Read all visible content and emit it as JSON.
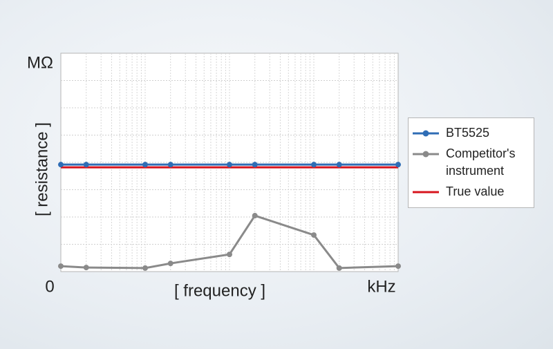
{
  "chart_data": {
    "type": "line",
    "y_corner_label": "MΩ",
    "x_origin_label": "0",
    "x_corner_label": "kHz",
    "xlabel": "[ frequency ]",
    "ylabel": "[ resistance ]",
    "x": [
      1,
      2,
      10,
      20,
      100,
      200,
      1000,
      2000,
      10000
    ],
    "xlim": [
      1,
      10000
    ],
    "xscale": "log",
    "xticks": [
      2,
      3,
      4,
      5,
      6,
      7,
      8,
      9,
      10,
      20,
      30,
      40,
      50,
      60,
      70,
      80,
      90,
      100,
      200,
      300,
      400,
      500,
      600,
      700,
      800,
      900,
      1000,
      2000,
      3000,
      4000,
      5000,
      6000,
      7000,
      8000,
      9000
    ],
    "ylim": [
      0,
      8
    ],
    "yticks": [
      1,
      2,
      3,
      4,
      5,
      6,
      7
    ],
    "grid": true,
    "series": [
      {
        "name": "BT5525",
        "color": "#2f6db5",
        "marker": "circle",
        "values": [
          3.92,
          3.92,
          3.92,
          3.92,
          3.92,
          3.92,
          3.92,
          3.92,
          3.92
        ]
      },
      {
        "name": "Competitor's instrument",
        "color": "#8a8a8a",
        "marker": "circle",
        "values": [
          0.2,
          0.15,
          0.13,
          0.3,
          0.63,
          2.05,
          1.34,
          0.13,
          0.2
        ]
      },
      {
        "name": "True value",
        "color": "#d7141d",
        "values": [
          3.82,
          3.82,
          3.82,
          3.82,
          3.82,
          3.82,
          3.82,
          3.82,
          3.82
        ]
      }
    ]
  }
}
